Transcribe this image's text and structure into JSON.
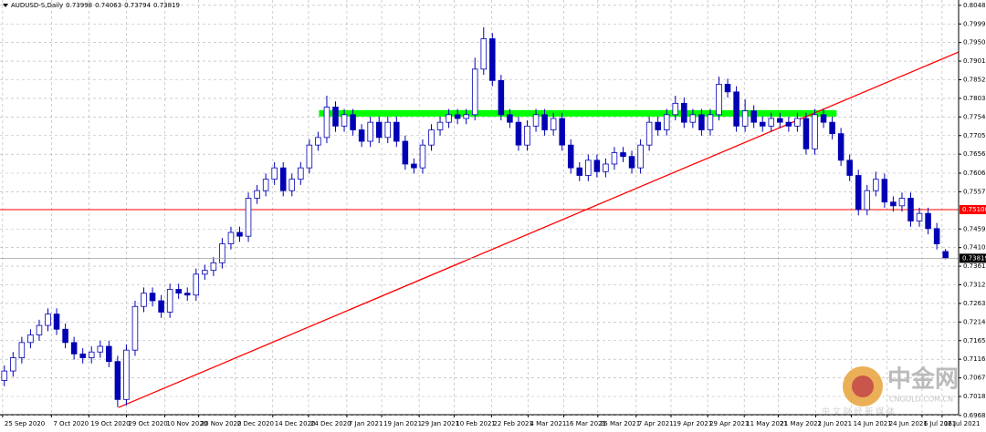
{
  "chart_data": {
    "type": "candlestick",
    "title": "AUDUSD-S,Daily",
    "xlim": [
      0,
      110
    ],
    "ylim": [
      0.697,
      0.8062
    ],
    "grid": true,
    "up_color": "#0000b4",
    "down_color": "#0000b4",
    "ohlc": [
      [
        0.706,
        0.71,
        0.7045,
        0.7085
      ],
      [
        0.7085,
        0.7135,
        0.707,
        0.712
      ],
      [
        0.712,
        0.7175,
        0.7105,
        0.716
      ],
      [
        0.716,
        0.7195,
        0.7145,
        0.718
      ],
      [
        0.718,
        0.722,
        0.7165,
        0.7205
      ],
      [
        0.7205,
        0.725,
        0.719,
        0.7235
      ],
      [
        0.7235,
        0.725,
        0.718,
        0.7195
      ],
      [
        0.7195,
        0.721,
        0.7145,
        0.716
      ],
      [
        0.716,
        0.7175,
        0.7115,
        0.713
      ],
      [
        0.713,
        0.7145,
        0.7105,
        0.712
      ],
      [
        0.712,
        0.715,
        0.7105,
        0.7135
      ],
      [
        0.7135,
        0.7165,
        0.712,
        0.715
      ],
      [
        0.715,
        0.7165,
        0.7095,
        0.711
      ],
      [
        0.711,
        0.7125,
        0.699,
        0.701
      ],
      [
        0.701,
        0.7155,
        0.6995,
        0.714
      ],
      [
        0.714,
        0.727,
        0.7125,
        0.7255
      ],
      [
        0.7255,
        0.7305,
        0.724,
        0.729
      ],
      [
        0.729,
        0.7305,
        0.7255,
        0.727
      ],
      [
        0.727,
        0.7285,
        0.7225,
        0.724
      ],
      [
        0.724,
        0.7315,
        0.7225,
        0.73
      ],
      [
        0.73,
        0.7315,
        0.7275,
        0.729
      ],
      [
        0.729,
        0.7305,
        0.727,
        0.7285
      ],
      [
        0.7285,
        0.7355,
        0.727,
        0.734
      ],
      [
        0.734,
        0.7365,
        0.7325,
        0.735
      ],
      [
        0.735,
        0.7385,
        0.7335,
        0.737
      ],
      [
        0.737,
        0.7435,
        0.7355,
        0.742
      ],
      [
        0.742,
        0.7465,
        0.7405,
        0.745
      ],
      [
        0.745,
        0.7465,
        0.7425,
        0.744
      ],
      [
        0.744,
        0.7555,
        0.7425,
        0.754
      ],
      [
        0.754,
        0.7575,
        0.7525,
        0.756
      ],
      [
        0.756,
        0.7605,
        0.7545,
        0.759
      ],
      [
        0.759,
        0.7635,
        0.7575,
        0.762
      ],
      [
        0.762,
        0.7635,
        0.7545,
        0.756
      ],
      [
        0.756,
        0.7605,
        0.7545,
        0.759
      ],
      [
        0.759,
        0.7635,
        0.7575,
        0.762
      ],
      [
        0.762,
        0.7695,
        0.7605,
        0.768
      ],
      [
        0.768,
        0.7715,
        0.7665,
        0.77
      ],
      [
        0.77,
        0.781,
        0.7685,
        0.778
      ],
      [
        0.778,
        0.7795,
        0.7715,
        0.773
      ],
      [
        0.773,
        0.7775,
        0.7715,
        0.776
      ],
      [
        0.776,
        0.7775,
        0.7705,
        0.772
      ],
      [
        0.772,
        0.7735,
        0.7675,
        0.769
      ],
      [
        0.769,
        0.7755,
        0.7675,
        0.774
      ],
      [
        0.774,
        0.7755,
        0.7685,
        0.77
      ],
      [
        0.77,
        0.7755,
        0.7685,
        0.774
      ],
      [
        0.774,
        0.7755,
        0.7675,
        0.769
      ],
      [
        0.769,
        0.7705,
        0.7615,
        0.763
      ],
      [
        0.763,
        0.7645,
        0.7605,
        0.762
      ],
      [
        0.762,
        0.7695,
        0.7605,
        0.768
      ],
      [
        0.768,
        0.7735,
        0.7665,
        0.772
      ],
      [
        0.772,
        0.7755,
        0.7705,
        0.774
      ],
      [
        0.774,
        0.7775,
        0.7725,
        0.776
      ],
      [
        0.776,
        0.7775,
        0.7735,
        0.775
      ],
      [
        0.775,
        0.7775,
        0.7735,
        0.776
      ],
      [
        0.776,
        0.791,
        0.7745,
        0.788
      ],
      [
        0.788,
        0.799,
        0.7865,
        0.796
      ],
      [
        0.796,
        0.7975,
        0.7835,
        0.785
      ],
      [
        0.785,
        0.7865,
        0.7745,
        0.776
      ],
      [
        0.776,
        0.7775,
        0.7725,
        0.774
      ],
      [
        0.774,
        0.7755,
        0.7665,
        0.768
      ],
      [
        0.768,
        0.7745,
        0.7665,
        0.773
      ],
      [
        0.773,
        0.7775,
        0.7715,
        0.776
      ],
      [
        0.776,
        0.7775,
        0.7705,
        0.772
      ],
      [
        0.772,
        0.7765,
        0.7705,
        0.775
      ],
      [
        0.775,
        0.7765,
        0.7665,
        0.768
      ],
      [
        0.768,
        0.7695,
        0.7605,
        0.762
      ],
      [
        0.762,
        0.7635,
        0.7585,
        0.76
      ],
      [
        0.76,
        0.7655,
        0.7585,
        0.764
      ],
      [
        0.764,
        0.7655,
        0.7595,
        0.761
      ],
      [
        0.761,
        0.7645,
        0.7595,
        0.763
      ],
      [
        0.763,
        0.7675,
        0.7615,
        0.766
      ],
      [
        0.766,
        0.7675,
        0.7635,
        0.765
      ],
      [
        0.765,
        0.7665,
        0.7605,
        0.762
      ],
      [
        0.762,
        0.7695,
        0.7605,
        0.768
      ],
      [
        0.768,
        0.7755,
        0.7665,
        0.774
      ],
      [
        0.774,
        0.7755,
        0.7705,
        0.772
      ],
      [
        0.772,
        0.7775,
        0.7705,
        0.776
      ],
      [
        0.776,
        0.781,
        0.7745,
        0.779
      ],
      [
        0.779,
        0.7805,
        0.7725,
        0.774
      ],
      [
        0.774,
        0.7775,
        0.7725,
        0.776
      ],
      [
        0.776,
        0.7775,
        0.7705,
        0.772
      ],
      [
        0.772,
        0.7775,
        0.7705,
        0.776
      ],
      [
        0.776,
        0.786,
        0.7745,
        0.784
      ],
      [
        0.784,
        0.7855,
        0.7805,
        0.782
      ],
      [
        0.782,
        0.7835,
        0.7715,
        0.773
      ],
      [
        0.773,
        0.78,
        0.7715,
        0.777
      ],
      [
        0.777,
        0.7785,
        0.7725,
        0.774
      ],
      [
        0.774,
        0.7755,
        0.7715,
        0.773
      ],
      [
        0.773,
        0.7765,
        0.7715,
        0.775
      ],
      [
        0.775,
        0.7765,
        0.7725,
        0.774
      ],
      [
        0.774,
        0.7755,
        0.7715,
        0.773
      ],
      [
        0.773,
        0.7765,
        0.7715,
        0.775
      ],
      [
        0.775,
        0.7765,
        0.7655,
        0.767
      ],
      [
        0.767,
        0.7775,
        0.7655,
        0.776
      ],
      [
        0.776,
        0.7775,
        0.7725,
        0.774
      ],
      [
        0.774,
        0.7755,
        0.7695,
        0.771
      ],
      [
        0.771,
        0.7725,
        0.7625,
        0.764
      ],
      [
        0.764,
        0.7655,
        0.7585,
        0.76
      ],
      [
        0.76,
        0.7615,
        0.7495,
        0.751
      ],
      [
        0.751,
        0.7575,
        0.7495,
        0.756
      ],
      [
        0.756,
        0.761,
        0.7545,
        0.759
      ],
      [
        0.759,
        0.7605,
        0.7515,
        0.753
      ],
      [
        0.753,
        0.7545,
        0.7505,
        0.752
      ],
      [
        0.752,
        0.7555,
        0.7505,
        0.754
      ],
      [
        0.754,
        0.7555,
        0.7465,
        0.748
      ],
      [
        0.748,
        0.7515,
        0.7465,
        0.75
      ],
      [
        0.75,
        0.7515,
        0.7445,
        0.746
      ],
      [
        0.746,
        0.7475,
        0.7405,
        0.742
      ],
      [
        0.73998,
        0.74063,
        0.73794,
        0.73819
      ]
    ],
    "yticks": [
      {
        "value": 0.8048,
        "label": "0.80480"
      },
      {
        "value": 0.7999,
        "label": "0.79990"
      },
      {
        "value": 0.795,
        "label": "0.79500"
      },
      {
        "value": 0.7901,
        "label": "0.79010"
      },
      {
        "value": 0.7852,
        "label": "0.78520"
      },
      {
        "value": 0.7803,
        "label": "0.78030"
      },
      {
        "value": 0.7754,
        "label": "0.77540"
      },
      {
        "value": 0.7705,
        "label": "0.77050"
      },
      {
        "value": 0.7656,
        "label": "0.76560"
      },
      {
        "value": 0.7606,
        "label": "0.76060"
      },
      {
        "value": 0.7557,
        "label": "0.75570"
      },
      {
        "value": 0.7459,
        "label": "0.74590"
      },
      {
        "value": 0.741,
        "label": "0.74100"
      },
      {
        "value": 0.7361,
        "label": "0.73610"
      },
      {
        "value": 0.7312,
        "label": "0.73120"
      },
      {
        "value": 0.7263,
        "label": "0.72630"
      },
      {
        "value": 0.7214,
        "label": "0.72140"
      },
      {
        "value": 0.7165,
        "label": "0.71650"
      },
      {
        "value": 0.7116,
        "label": "0.71160"
      },
      {
        "value": 0.7067,
        "label": "0.70670"
      },
      {
        "value": 0.7018,
        "label": "0.70180"
      },
      {
        "value": 0.6968,
        "label": "0.69680"
      }
    ],
    "xticks": [
      {
        "value": 0.3,
        "label": "25 Sep 2020"
      },
      {
        "value": 5.9,
        "label": "7 Oct 2020"
      },
      {
        "value": 10.2,
        "label": "19 Oct 2020"
      },
      {
        "value": 14.5,
        "label": "29 Oct 2020"
      },
      {
        "value": 18.9,
        "label": "10 Nov 2020"
      },
      {
        "value": 22.8,
        "label": "20 Nov 2020"
      },
      {
        "value": 27.0,
        "label": "2 Dec 2020"
      },
      {
        "value": 31.3,
        "label": "14 Dec 2020"
      },
      {
        "value": 35.4,
        "label": "24 Dec 2020"
      },
      {
        "value": 39.8,
        "label": "7 Jan 2021"
      },
      {
        "value": 43.8,
        "label": "19 Jan 2021"
      },
      {
        "value": 48.1,
        "label": "29 Jan 2021"
      },
      {
        "value": 52.1,
        "label": "10 Feb 2021"
      },
      {
        "value": 56.4,
        "label": "22 Feb 2021"
      },
      {
        "value": 60.6,
        "label": "4 Mar 2021"
      },
      {
        "value": 64.7,
        "label": "16 Mar 2021"
      },
      {
        "value": 68.6,
        "label": "26 Mar 2021"
      },
      {
        "value": 73.0,
        "label": "7 Apr 2021"
      },
      {
        "value": 77.0,
        "label": "19 Apr 2021"
      },
      {
        "value": 81.2,
        "label": "29 Apr 2021"
      },
      {
        "value": 85.4,
        "label": "11 May 2021"
      },
      {
        "value": 89.3,
        "label": "21 May 2021"
      },
      {
        "value": 93.6,
        "label": "2 Jun 2021"
      },
      {
        "value": 97.7,
        "label": "14 Jun 2021"
      },
      {
        "value": 101.8,
        "label": "24 Jun 2021"
      },
      {
        "value": 105.8,
        "label": "6 Jul 2021"
      },
      {
        "value": 108.1,
        "label": "16 Jul 2021"
      }
    ],
    "hlines": [
      {
        "value": 0.751,
        "label": "0.75100",
        "color": "#ff0000"
      }
    ],
    "trendline": {
      "x": [
        13.6,
        110
      ],
      "y": [
        0.6989,
        0.7925
      ],
      "color": "#ff0000"
    },
    "zones": [
      {
        "x": [
          36.6,
          96
        ],
        "y": [
          0.7755,
          0.7772
        ],
        "color": "#00ff00"
      }
    ],
    "watermark": {
      "title": "中金网",
      "subtitle": "中 文 财 经 新 媒 体",
      "site": "CNGOLD.COM.CN"
    }
  }
}
